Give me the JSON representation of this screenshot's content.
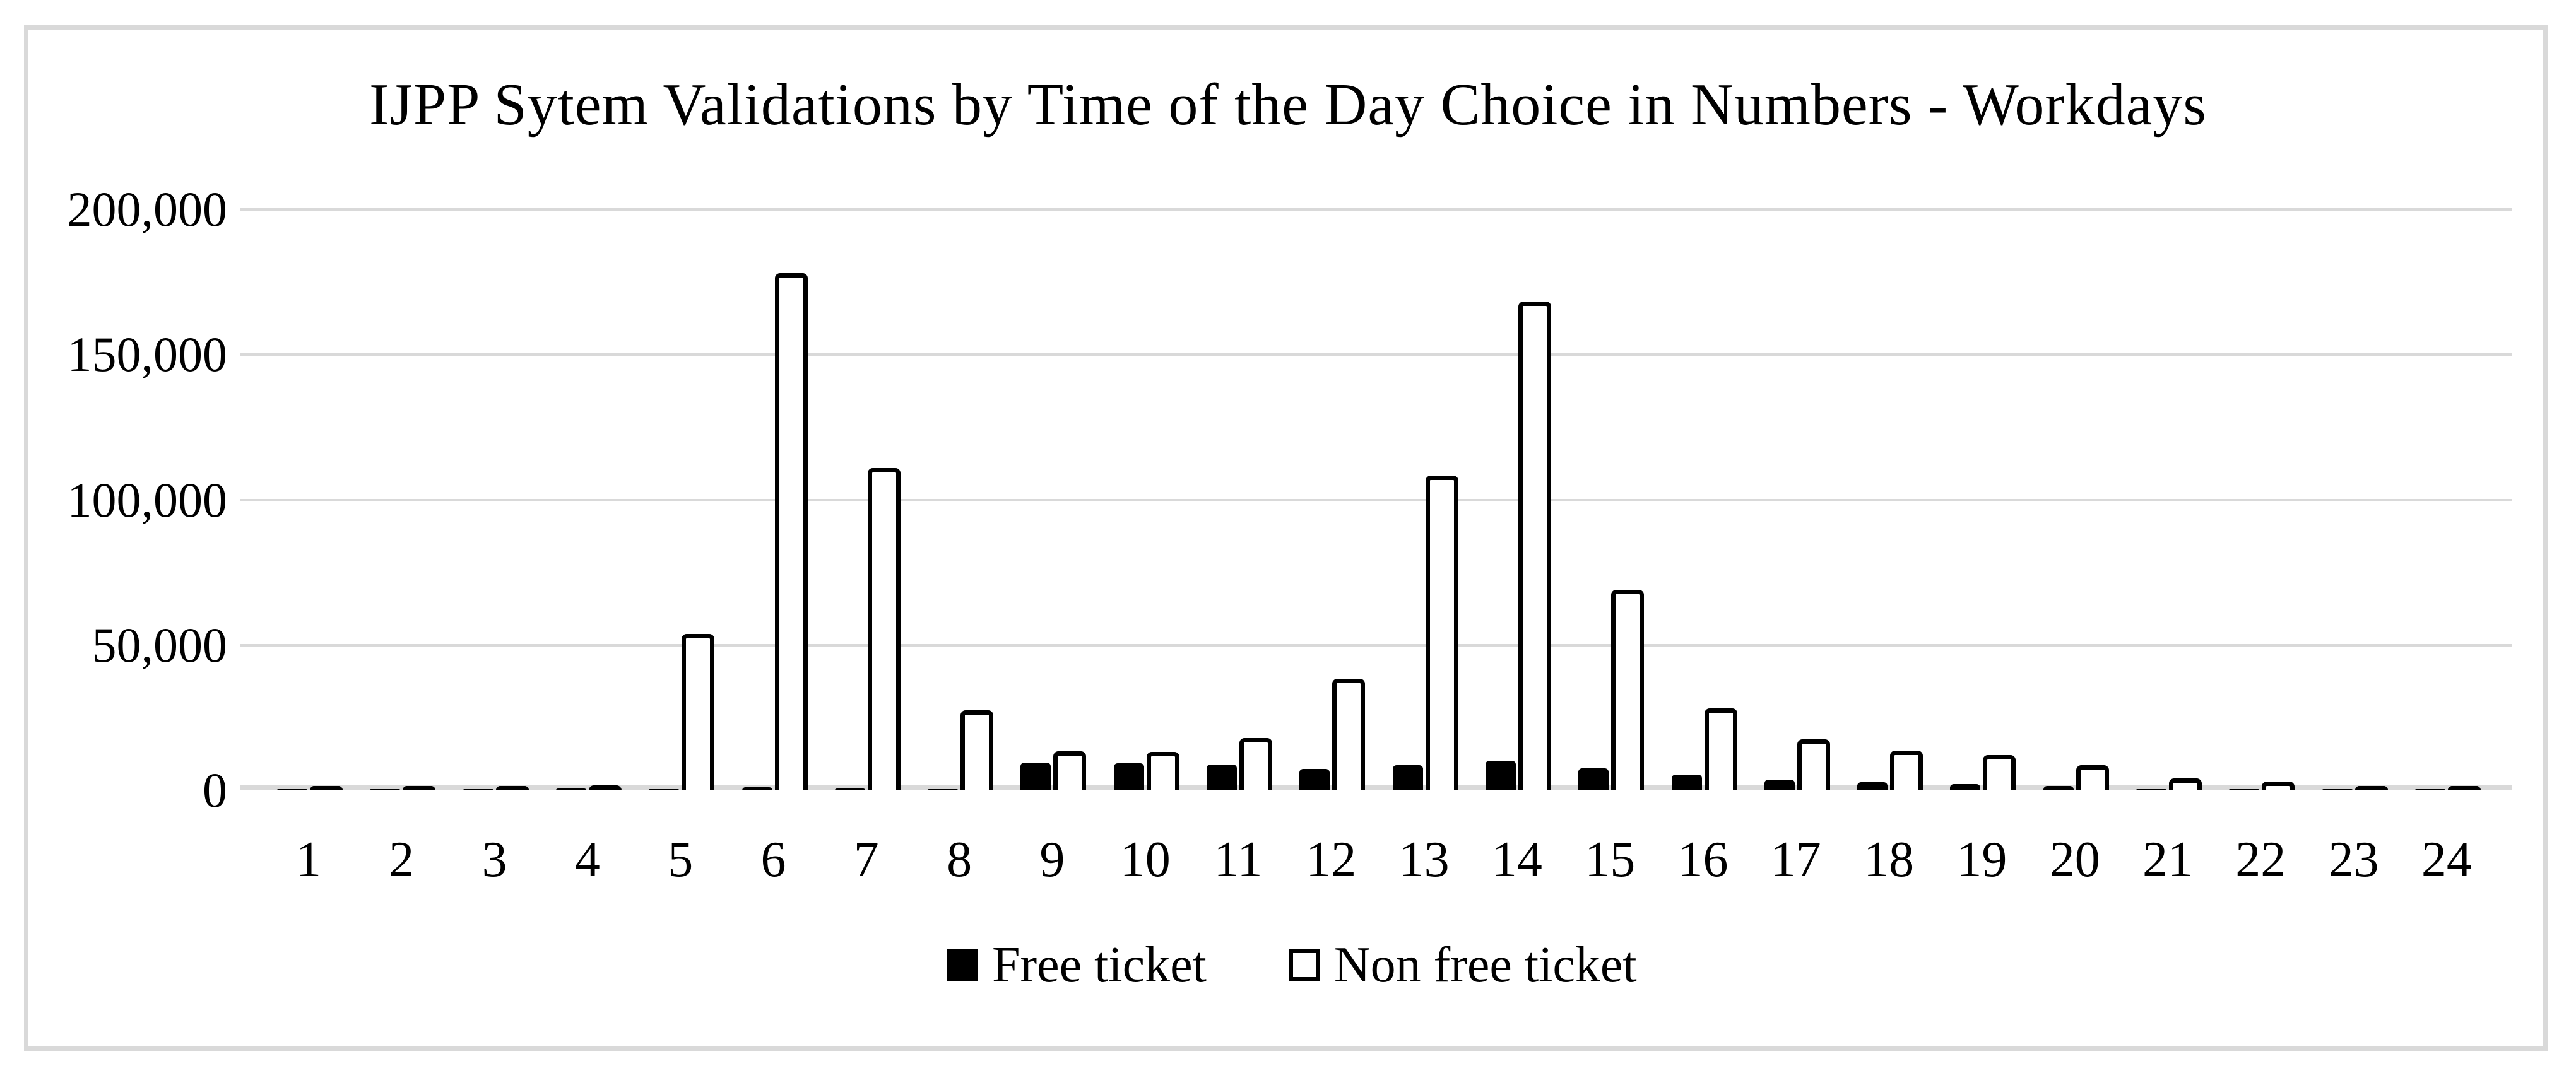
{
  "figure": {
    "background_color": "#ffffff",
    "border_color": "#d9d9d9",
    "gridline_color": "#d9d9d9",
    "bar_fill_free": "#000000",
    "bar_fill_nonfree": "#ffffff",
    "bar_border_color": "#000000"
  },
  "chart_data": {
    "type": "bar",
    "title": "IJPP Sytem Validations by Time of the Day Choice in Numbers - Workdays",
    "xlabel": "",
    "ylabel": "",
    "ylim": [
      0,
      200000
    ],
    "ytick_interval": 50000,
    "ytick_labels": [
      "0",
      "50,000",
      "100,000",
      "150,000",
      "200,000"
    ],
    "grid": true,
    "legend_position": "bottom",
    "categories": [
      "1",
      "2",
      "3",
      "4",
      "5",
      "6",
      "7",
      "8",
      "9",
      "10",
      "11",
      "12",
      "13",
      "14",
      "15",
      "16",
      "17",
      "18",
      "19",
      "20",
      "21",
      "22",
      "23",
      "24"
    ],
    "series": [
      {
        "name": "Free ticket",
        "style": "filled-black",
        "values": [
          150,
          100,
          150,
          700,
          500,
          1100,
          700,
          500,
          9500,
          9400,
          9000,
          7300,
          8600,
          10300,
          7500,
          5500,
          3600,
          2900,
          2200,
          1500,
          500,
          400,
          250,
          200
        ]
      },
      {
        "name": "Non free ticket",
        "style": "white-outlined",
        "values": [
          700,
          600,
          800,
          1800,
          53800,
          178000,
          111000,
          27500,
          13500,
          13200,
          18000,
          38500,
          108300,
          168300,
          69000,
          28300,
          17500,
          13700,
          12100,
          8600,
          4200,
          3000,
          800,
          400
        ]
      }
    ]
  }
}
